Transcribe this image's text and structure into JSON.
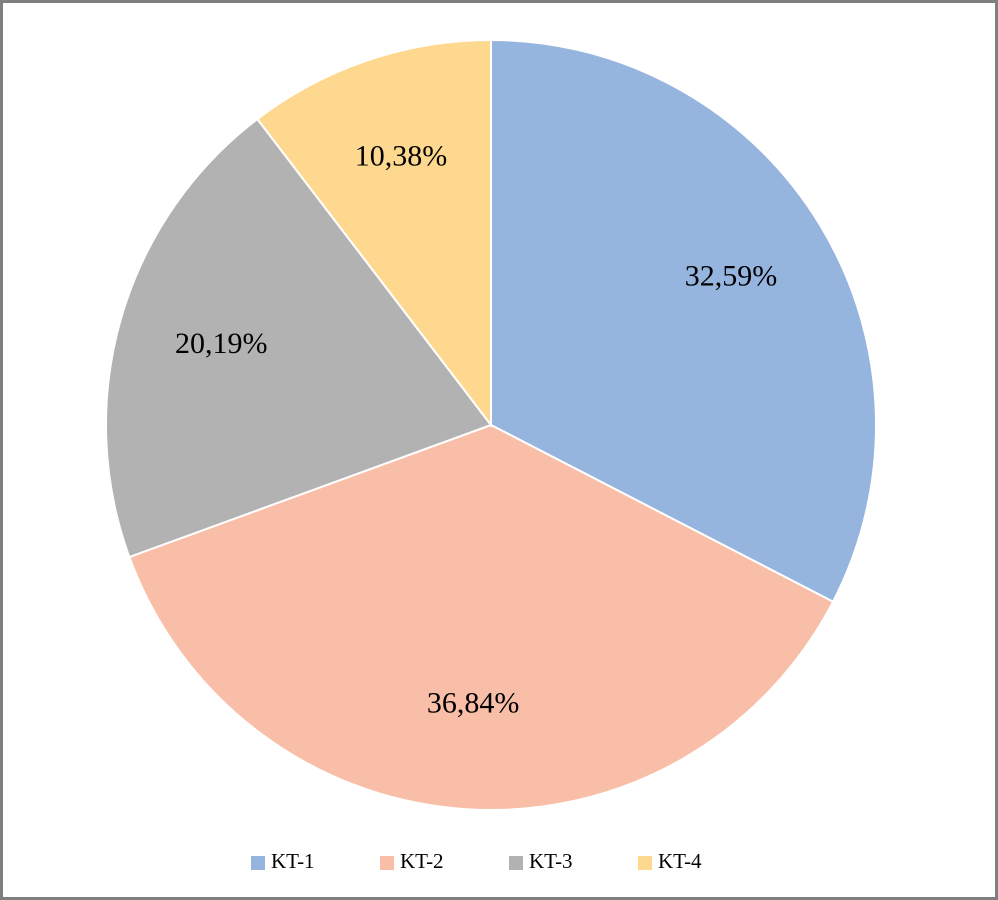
{
  "chart_data": {
    "type": "pie",
    "categories": [
      "KT-1",
      "KT-2",
      "KT-3",
      "KT-4"
    ],
    "values": [
      32.59,
      36.84,
      20.19,
      10.38
    ],
    "value_labels": [
      "32,59%",
      "36,84%",
      "20,19%",
      "10,38%"
    ],
    "colors": [
      "#95b4de",
      "#f9bea8",
      "#b2b2b2",
      "#fed88f"
    ],
    "legend": "bottom"
  }
}
